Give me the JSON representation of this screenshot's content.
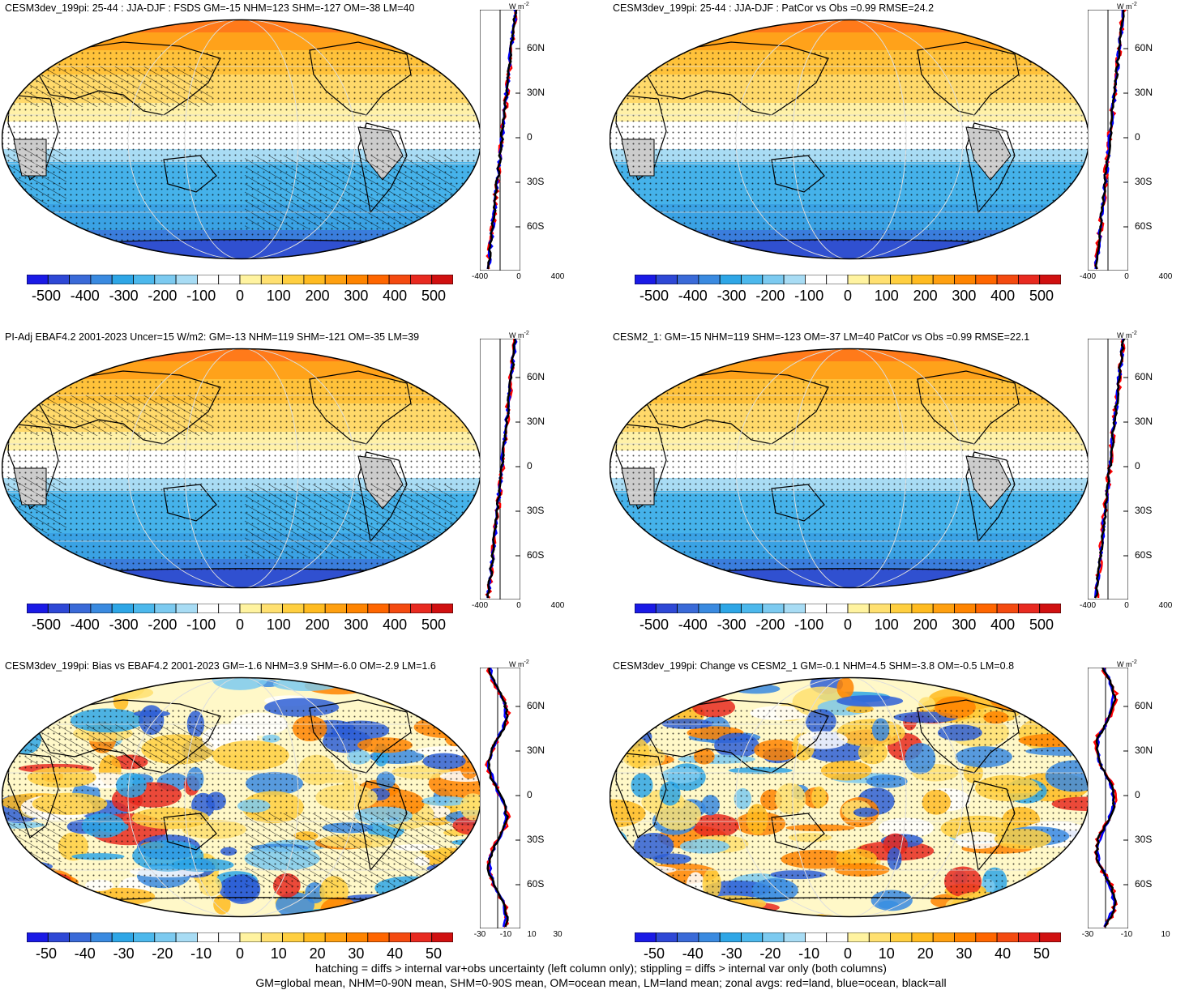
{
  "panels": [
    {
      "title": "CESM3dev_199pi: 25-44 : JJA-DJF : FSDS GM=-15 NHM=123 SHM=-127 OM=-38 LM=40",
      "type": "mean",
      "hatch": true
    },
    {
      "title": "CESM3dev_199pi: 25-44 : JJA-DJF : PatCor vs Obs =0.99 RMSE=24.2",
      "type": "mean",
      "hatch": false
    },
    {
      "title": "PI-Adj EBAF4.2 2001-2023 Uncer=15 W/m2: GM=-13 NHM=119 SHM=-121 OM=-35 LM=39",
      "type": "mean",
      "hatch": true
    },
    {
      "title": "CESM2_1: GM=-15 NHM=119 SHM=-123 OM=-37 LM=40 PatCor vs Obs =0.99 RMSE=22.1",
      "type": "mean",
      "hatch": false
    },
    {
      "title": "CESM3dev_199pi: Bias vs EBAF4.2 2001-2023 GM=-1.6 NHM=3.9 SHM=-6.0 OM=-2.9 LM=1.6",
      "type": "diff",
      "hatch": true
    },
    {
      "title": "CESM3dev_199pi: Change vs CESM2_1 GM=-0.1 NHM=4.5 SHM=-3.8 OM=-0.5 LM=0.8",
      "type": "diff",
      "hatch": false
    }
  ],
  "colorbar_mean": {
    "labels": [
      "-500",
      "-400",
      "-300",
      "-200",
      "-100",
      "0",
      "100",
      "200",
      "300",
      "400",
      "500"
    ],
    "colors": [
      "#1a1ae6",
      "#2e48d6",
      "#3a6ad8",
      "#3a8ae0",
      "#2ea6e6",
      "#4cb8ec",
      "#7ccaf0",
      "#a8dcf4",
      "#ffffff",
      "#ffffff",
      "#fff3a0",
      "#ffe070",
      "#ffcf40",
      "#ffbb20",
      "#ffa010",
      "#ff8400",
      "#ff6600",
      "#f44a10",
      "#e82a20",
      "#d01010"
    ]
  },
  "colorbar_diff": {
    "labels": [
      "-50",
      "-40",
      "-30",
      "-20",
      "-10",
      "0",
      "10",
      "20",
      "30",
      "40",
      "50"
    ]
  },
  "zonal_mean": {
    "unit": "W m",
    "unit_sup": "-2",
    "y_ticks": [
      "60N",
      "30N",
      "0",
      "30S",
      "60S"
    ],
    "x_ticks": [
      "-400",
      "0",
      "400"
    ]
  },
  "zonal_diff_left": {
    "unit": "W m",
    "unit_sup": "-2",
    "y_ticks": [
      "60N",
      "30N",
      "0",
      "30S",
      "60S"
    ],
    "x_ticks": [
      "-30",
      "-10",
      "10",
      "30"
    ]
  },
  "zonal_diff_right": {
    "unit": "W m",
    "unit_sup": "-2",
    "y_ticks": [
      "60N",
      "30N",
      "0",
      "30S",
      "60S"
    ],
    "x_ticks": [
      "-30",
      "-10",
      "10"
    ]
  },
  "footer": {
    "line1": "hatching = diffs > internal var+obs uncertainty (left column only); stippling = diffs > internal var only (both columns)",
    "line2": "GM=global mean, NHM=0-90N mean, SHM=0-90S mean, OM=ocean mean, LM=land mean; zonal avgs: red=land, blue=ocean, black=all"
  },
  "line_colors": {
    "land": "#ff0000",
    "ocean": "#0000ff",
    "all": "#000000"
  }
}
